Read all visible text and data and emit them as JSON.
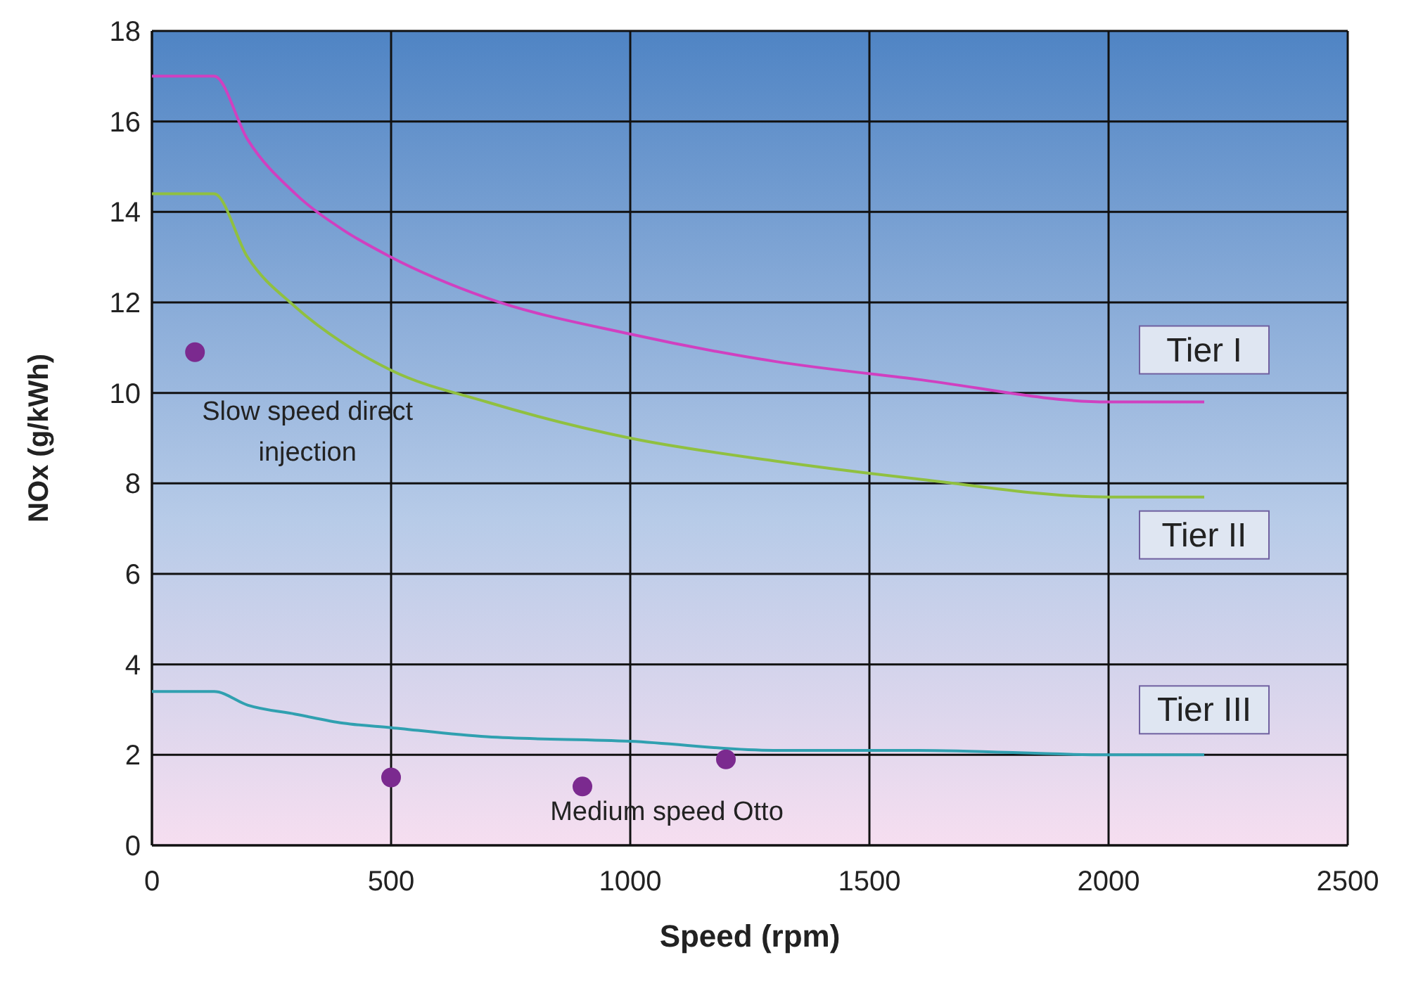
{
  "chart_data": {
    "type": "line",
    "xlabel": "Speed (rpm)",
    "ylabel": "NOx (g/kWh)",
    "xlim": [
      0,
      2500
    ],
    "ylim": [
      0,
      18
    ],
    "xticks": [
      0,
      500,
      1000,
      1500,
      2000,
      2500
    ],
    "yticks": [
      0,
      2,
      4,
      6,
      8,
      10,
      12,
      14,
      16,
      18
    ],
    "grid": true,
    "marker": "none",
    "series": [
      {
        "name": "Tier I",
        "color": "#d040c0",
        "x": [
          0,
          130,
          200,
          300,
          400,
          500,
          700,
          1000,
          1300,
          1600,
          2000,
          2200
        ],
        "values": [
          17,
          17,
          15.6,
          14.4,
          13.6,
          13,
          12.1,
          11.3,
          10.7,
          10.3,
          9.8,
          9.8
        ]
      },
      {
        "name": "Tier II",
        "color": "#90c040",
        "x": [
          0,
          130,
          200,
          300,
          400,
          500,
          700,
          1000,
          1300,
          1600,
          2000,
          2200
        ],
        "values": [
          14.4,
          14.4,
          13,
          11.9,
          11.1,
          10.5,
          9.8,
          9,
          8.5,
          8.1,
          7.7,
          7.7
        ]
      },
      {
        "name": "Tier III",
        "color": "#30a0b0",
        "x": [
          0,
          130,
          200,
          300,
          400,
          500,
          700,
          1000,
          1300,
          1600,
          2000,
          2200
        ],
        "values": [
          3.4,
          3.4,
          3.1,
          2.9,
          2.7,
          2.6,
          2.4,
          2.3,
          2.1,
          2.1,
          2,
          2
        ]
      },
      {
        "type": "scatter",
        "color": "#7b2a8f",
        "marker": "circle",
        "x": [
          90,
          500,
          900,
          1200
        ],
        "values": [
          10.9,
          1.5,
          1.3,
          1.9
        ]
      }
    ],
    "annotations": [
      {
        "text": "Slow speed direct injection",
        "x": 90,
        "y": 10.9
      },
      {
        "text": "Medium speed Otto",
        "x": 900,
        "y": 1.3
      }
    ]
  }
}
